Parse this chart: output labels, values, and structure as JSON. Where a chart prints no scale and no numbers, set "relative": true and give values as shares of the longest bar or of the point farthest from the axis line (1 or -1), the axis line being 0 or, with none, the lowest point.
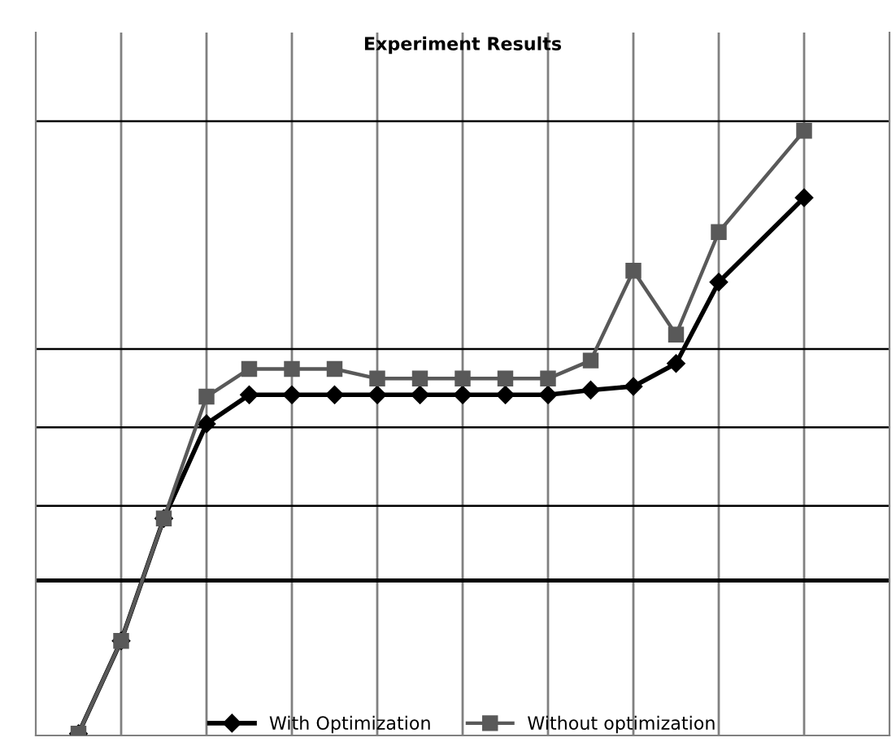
{
  "chart_data": {
    "type": "line",
    "title": "Experiment Results",
    "relative": true,
    "categories": [
      null,
      null,
      null,
      null,
      null,
      null,
      null,
      null,
      null,
      null,
      null,
      null,
      null,
      null,
      null,
      null,
      null,
      null
    ],
    "series": [
      {
        "name": "With Optimization",
        "color": "#000000",
        "marker": "diamond",
        "values": [
          0,
          0.154,
          0.357,
          0.514,
          0.562,
          0.562,
          0.562,
          0.562,
          0.562,
          0.562,
          0.562,
          0.562,
          0.57,
          0.576,
          0.614,
          0.749,
          null,
          0.889
        ]
      },
      {
        "name": "Without optimization",
        "color": "#595959",
        "marker": "square",
        "values": [
          0,
          0.154,
          0.357,
          0.559,
          0.605,
          0.605,
          0.605,
          0.589,
          0.589,
          0.589,
          0.589,
          0.589,
          0.619,
          0.768,
          0.662,
          0.832,
          null,
          1
        ]
      }
    ],
    "ref_lines": [
      {
        "axis": "y",
        "value": 1.016,
        "color": "#000000"
      },
      {
        "axis": "y",
        "value": 0.638,
        "color": "#000000"
      },
      {
        "axis": "y",
        "value": 0.508,
        "color": "#000000"
      },
      {
        "axis": "y",
        "value": 0.378,
        "color": "#000000"
      },
      {
        "axis": "y",
        "value": 0.254,
        "color": "#000000"
      }
    ],
    "grid": "x",
    "legend": "bottom",
    "line_style": "solid"
  }
}
